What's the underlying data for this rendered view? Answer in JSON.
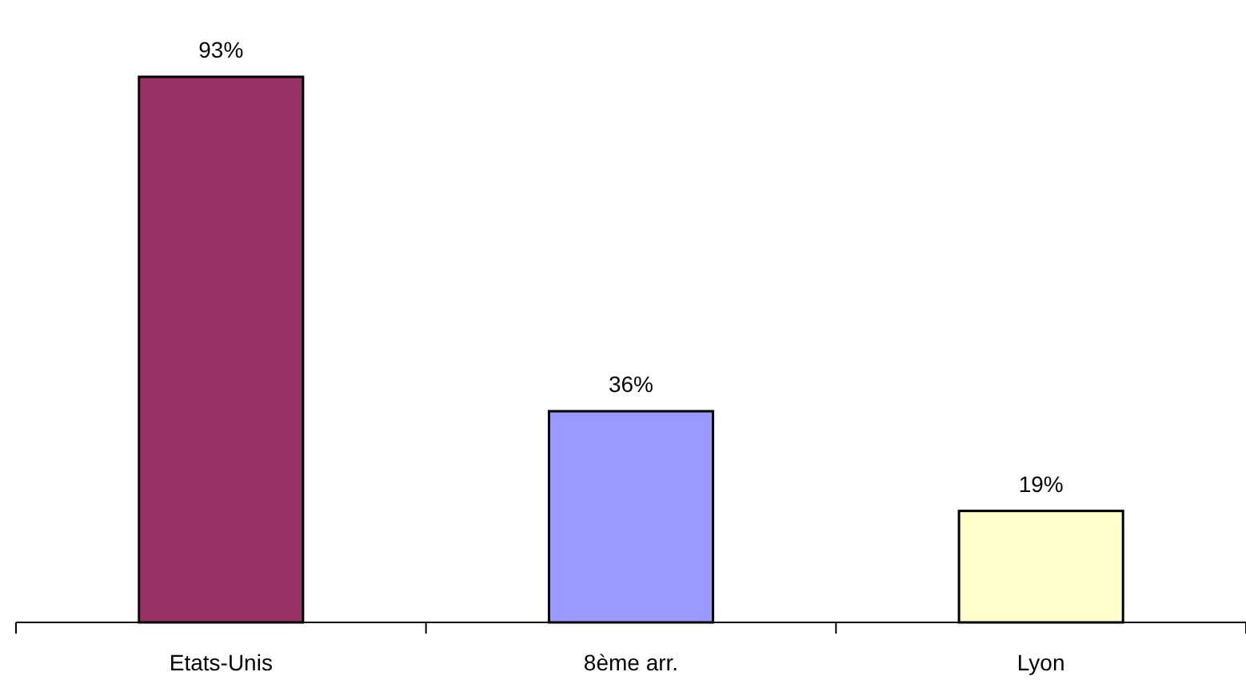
{
  "chart_data": {
    "type": "bar",
    "categories": [
      "Etats-Unis",
      "8ème arr.",
      "Lyon"
    ],
    "values": [
      93,
      36,
      19
    ],
    "colors": [
      "#993366",
      "#9999ff",
      "#ffffcc"
    ],
    "value_labels": [
      "93%",
      "36%",
      "19%"
    ]
  }
}
